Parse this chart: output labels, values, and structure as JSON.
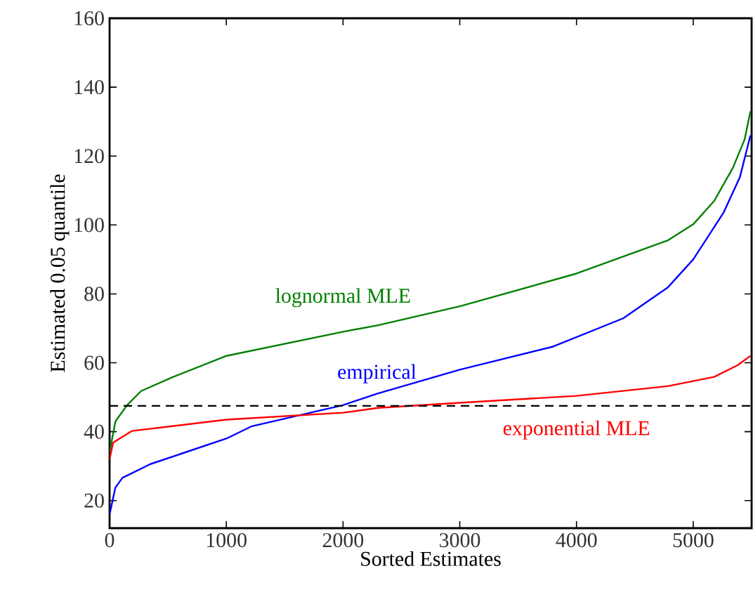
{
  "chart_data": {
    "type": "line",
    "xlabel": "Sorted Estimates",
    "ylabel": "Estimated 0.05 quantile",
    "xlim": [
      0,
      5500
    ],
    "ylim": [
      12,
      160
    ],
    "xticks": [
      0,
      1000,
      2000,
      3000,
      4000,
      5000
    ],
    "yticks": [
      20,
      40,
      60,
      80,
      100,
      120,
      140,
      160
    ],
    "grid": false,
    "legend": false,
    "series": [
      {
        "name": "lognormal MLE",
        "color": "#008000",
        "x": [
          0,
          50,
          150,
          270,
          545,
          1000,
          2000,
          2300,
          3000,
          4000,
          4780,
          5000,
          5180,
          5340,
          5440,
          5490
        ],
        "values": [
          34,
          43,
          47.7,
          51.8,
          55.9,
          62,
          69,
          70.9,
          76.4,
          85.9,
          95.5,
          100.2,
          107,
          116.6,
          124.8,
          133
        ]
      },
      {
        "name": "empirical",
        "color": "#0000ff",
        "x": [
          0,
          50,
          110,
          350,
          1000,
          1220,
          2000,
          2290,
          3000,
          3800,
          4400,
          4780,
          5000,
          5260,
          5400,
          5490
        ],
        "values": [
          16,
          23.8,
          26.6,
          30.6,
          38,
          41.6,
          47.7,
          51,
          58,
          64.7,
          72.9,
          81.8,
          90,
          103.6,
          113.9,
          126
        ]
      },
      {
        "name": "exponential MLE",
        "color": "#ff0000",
        "x": [
          0,
          30,
          190,
          1000,
          2000,
          2300,
          3000,
          4000,
          4780,
          5180,
          5380,
          5490
        ],
        "values": [
          32,
          36.8,
          40.2,
          43.5,
          45.5,
          46.9,
          48.4,
          50.4,
          53.2,
          55.9,
          59.3,
          62
        ]
      }
    ],
    "ref_lines": [
      {
        "axis": "y",
        "value": 47.5,
        "color": "#000000",
        "line_style": "dashed"
      }
    ]
  }
}
